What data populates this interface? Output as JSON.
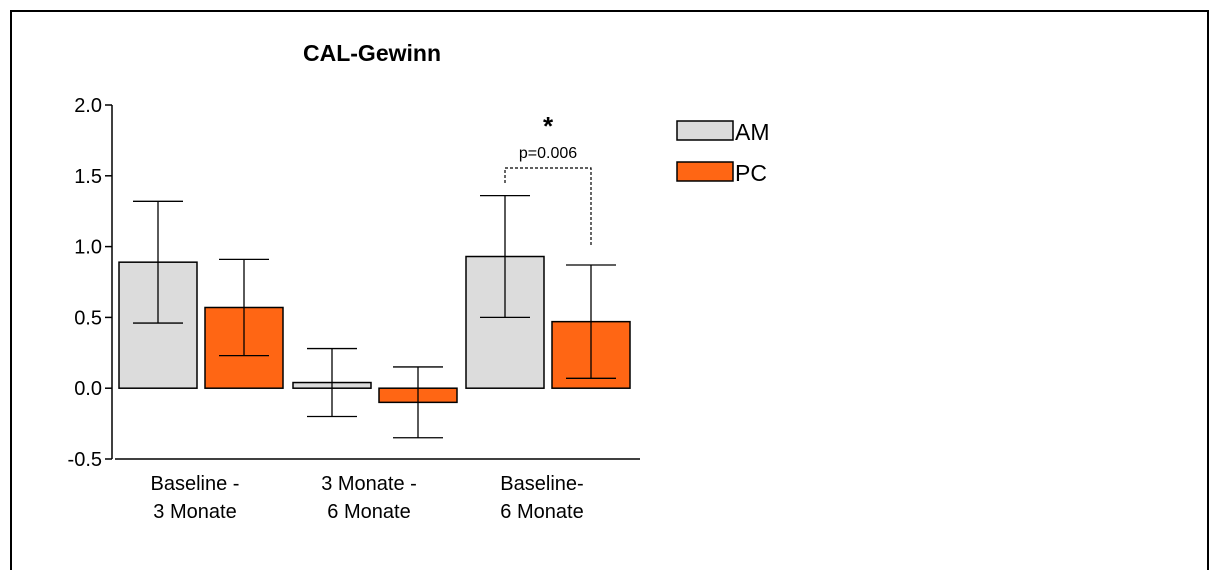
{
  "chart_data": {
    "type": "bar",
    "title": "CAL-Gewinn",
    "categories": [
      "Baseline -\n3 Monate",
      "3 Monate -\n6 Monate",
      "Baseline-\n6 Monate"
    ],
    "ylim": [
      -0.5,
      2.0
    ],
    "yticks": [
      -0.5,
      0.0,
      0.5,
      1.0,
      1.5,
      2.0
    ],
    "ytick_labels": [
      "-0.5",
      "0.0",
      "0.5",
      "1.0",
      "1.5",
      "2.0"
    ],
    "legend_position": "right",
    "series": [
      {
        "name": "AM",
        "color": "#dcdcdc",
        "values": [
          0.89,
          0.04,
          0.93
        ],
        "err_low": [
          0.46,
          -0.2,
          0.5
        ],
        "err_high": [
          1.32,
          0.28,
          1.36
        ]
      },
      {
        "name": "PC",
        "color": "#ff6614",
        "values": [
          0.57,
          -0.1,
          0.47
        ],
        "err_low": [
          0.23,
          -0.35,
          0.07
        ],
        "err_high": [
          0.91,
          0.15,
          0.87
        ]
      }
    ],
    "annotation": {
      "mark": "*",
      "text": "p=0.006",
      "category_index": 2
    }
  }
}
